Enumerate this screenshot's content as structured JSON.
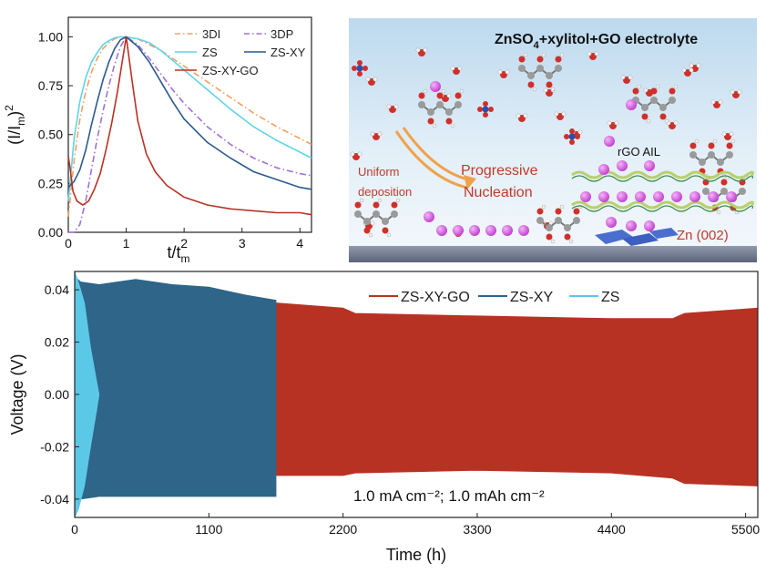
{
  "chart_data": [
    {
      "type": "line",
      "xlabel": "t/t",
      "xlabel_sub": "m",
      "ylabel_main": "(I/I",
      "ylabel_sub": "m",
      "ylabel_close": ")",
      "ylabel_sup": "2",
      "xlim": [
        0,
        4.2
      ],
      "ylim": [
        0,
        1.1
      ],
      "xticks": [
        0,
        1,
        2,
        3,
        4
      ],
      "yticks": [
        0.0,
        0.25,
        0.5,
        0.75,
        1.0
      ],
      "ytick_labels": [
        "0.00",
        "0.25",
        "0.50",
        "0.75",
        "1.00"
      ],
      "legend_placement": "top-right",
      "series": [
        {
          "name": "3DI",
          "color": "#f0a060",
          "dash": "dashdot",
          "x": [
            0,
            0.1,
            0.2,
            0.3,
            0.4,
            0.5,
            0.6,
            0.7,
            0.8,
            0.9,
            1.0,
            1.2,
            1.4,
            1.6,
            1.8,
            2.0,
            2.4,
            2.8,
            3.2,
            3.6,
            4.0,
            4.2
          ],
          "y": [
            0.08,
            0.37,
            0.58,
            0.72,
            0.82,
            0.89,
            0.94,
            0.97,
            0.99,
            1.0,
            1.0,
            0.99,
            0.96,
            0.93,
            0.89,
            0.85,
            0.77,
            0.69,
            0.61,
            0.54,
            0.48,
            0.45
          ]
        },
        {
          "name": "3DP",
          "color": "#a070d8",
          "dash": "dashdot",
          "x": [
            0,
            0.1,
            0.2,
            0.3,
            0.4,
            0.5,
            0.6,
            0.7,
            0.8,
            0.9,
            1.0,
            1.2,
            1.4,
            1.6,
            1.8,
            2.0,
            2.4,
            2.8,
            3.2,
            3.6,
            4.0,
            4.2
          ],
          "y": [
            0.0,
            0.0,
            0.04,
            0.16,
            0.32,
            0.48,
            0.62,
            0.75,
            0.86,
            0.95,
            1.0,
            0.96,
            0.89,
            0.81,
            0.73,
            0.66,
            0.54,
            0.45,
            0.38,
            0.33,
            0.3,
            0.29
          ]
        },
        {
          "name": "ZS",
          "color": "#5fd4e8",
          "dash": "solid",
          "x": [
            0,
            0.1,
            0.2,
            0.3,
            0.4,
            0.5,
            0.6,
            0.7,
            0.8,
            0.9,
            1.0,
            1.2,
            1.4,
            1.6,
            1.8,
            2.0,
            2.4,
            2.8,
            3.2,
            3.6,
            4.0,
            4.2
          ],
          "y": [
            0.16,
            0.48,
            0.67,
            0.79,
            0.87,
            0.92,
            0.96,
            0.98,
            0.995,
            1.0,
            1.0,
            0.99,
            0.97,
            0.93,
            0.88,
            0.83,
            0.73,
            0.63,
            0.54,
            0.47,
            0.41,
            0.38
          ]
        },
        {
          "name": "ZS-XY",
          "color": "#2a5a8c",
          "dash": "solid",
          "x": [
            0,
            0.1,
            0.2,
            0.3,
            0.4,
            0.5,
            0.6,
            0.7,
            0.8,
            0.9,
            1.0,
            1.2,
            1.4,
            1.6,
            1.8,
            2.0,
            2.4,
            2.8,
            3.2,
            3.6,
            4.0,
            4.2
          ],
          "y": [
            0.23,
            0.26,
            0.32,
            0.42,
            0.55,
            0.67,
            0.78,
            0.87,
            0.94,
            0.985,
            1.0,
            0.95,
            0.87,
            0.77,
            0.67,
            0.58,
            0.46,
            0.38,
            0.31,
            0.27,
            0.23,
            0.22
          ]
        },
        {
          "name": "ZS-XY-GO",
          "color": "#b83224",
          "dash": "solid",
          "x": [
            0,
            0.03,
            0.08,
            0.15,
            0.25,
            0.35,
            0.45,
            0.55,
            0.65,
            0.75,
            0.85,
            0.93,
            1.0,
            1.1,
            1.2,
            1.35,
            1.5,
            1.7,
            2.0,
            2.4,
            2.8,
            3.2,
            3.6,
            4.0,
            4.2
          ],
          "y": [
            0.39,
            0.33,
            0.21,
            0.16,
            0.14,
            0.16,
            0.22,
            0.3,
            0.42,
            0.56,
            0.72,
            0.87,
            1.0,
            0.78,
            0.57,
            0.4,
            0.31,
            0.24,
            0.18,
            0.14,
            0.12,
            0.11,
            0.1,
            0.1,
            0.09
          ]
        }
      ]
    },
    {
      "type": "line",
      "xlabel": "Time (h)",
      "ylabel": "Voltage (V)",
      "xlim": [
        0,
        5600
      ],
      "ylim": [
        -0.047,
        0.047
      ],
      "xticks": [
        0,
        1100,
        2200,
        3300,
        4400,
        5500
      ],
      "yticks": [
        -0.04,
        -0.02,
        0.0,
        0.02,
        0.04
      ],
      "ytick_labels": [
        "-0.04",
        "-0.02",
        "0.00",
        "0.02",
        "0.04"
      ],
      "legend_placement": "top-right",
      "annotation": "1.0 mA cm⁻²; 1.0 mAh cm⁻²",
      "series": [
        {
          "name": "ZS-XY-GO",
          "color": "#b83224",
          "x": [
            0,
            1100,
            1650,
            2200,
            2300,
            3300,
            4400,
            4900,
            5000,
            5600
          ],
          "upper": [
            0.035,
            0.036,
            0.035,
            0.033,
            0.031,
            0.03,
            0.029,
            0.029,
            0.031,
            0.033
          ],
          "lower": [
            -0.031,
            -0.031,
            -0.031,
            -0.031,
            -0.03,
            -0.029,
            -0.03,
            -0.032,
            -0.034,
            -0.035
          ]
        },
        {
          "name": "ZS-XY",
          "color": "#2e6589",
          "x": [
            0,
            50,
            200,
            500,
            800,
            1100,
            1400,
            1650
          ],
          "upper": [
            0.045,
            0.043,
            0.042,
            0.044,
            0.042,
            0.041,
            0.038,
            0.036
          ],
          "lower": [
            -0.045,
            -0.04,
            -0.039,
            -0.039,
            -0.039,
            -0.039,
            -0.039,
            -0.039
          ]
        },
        {
          "name": "ZS",
          "color": "#5cc8e8",
          "x": [
            0,
            30,
            80,
            130,
            180,
            200
          ],
          "upper": [
            0.047,
            0.043,
            0.035,
            0.018,
            0.005,
            0.0
          ],
          "lower": [
            -0.047,
            -0.044,
            -0.035,
            -0.02,
            -0.006,
            0.0
          ]
        }
      ]
    }
  ],
  "diagram": {
    "title": "ZnSO",
    "title_sub": "4",
    "title_rest": "+xylitol+GO  electrolyte",
    "label_uniform": "Uniform\ndeposition",
    "label_uniform_l1": "Uniform",
    "label_uniform_l2": "deposition",
    "label_progressive_l1": "Progressive",
    "label_progressive_l2": "Nucleation",
    "label_rgo": "rGO AIL",
    "label_zn": "Zn (002)"
  }
}
